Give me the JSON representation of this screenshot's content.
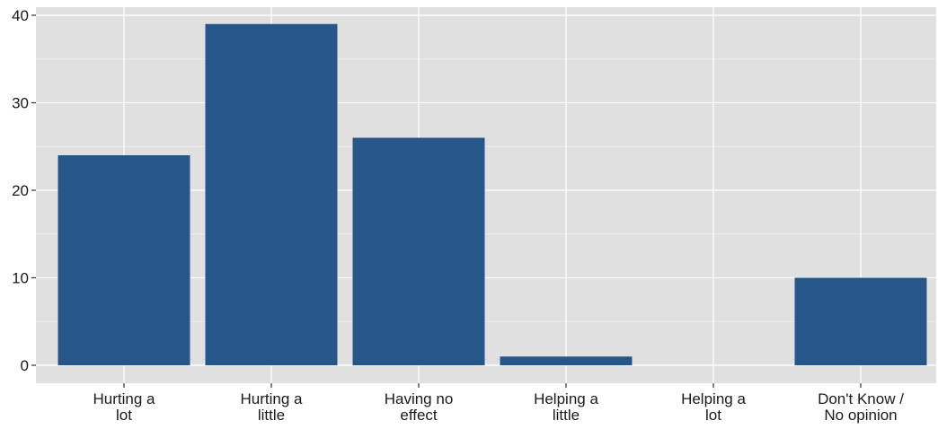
{
  "chart_data": {
    "type": "bar",
    "categories": [
      [
        "Hurting a",
        "lot"
      ],
      [
        "Hurting a",
        "little"
      ],
      [
        "Having no",
        "effect"
      ],
      [
        "Helping a",
        "little"
      ],
      [
        "Helping a",
        "lot"
      ],
      [
        "Don't Know /",
        "No opinion"
      ]
    ],
    "values": [
      24,
      39,
      26,
      1,
      0,
      10
    ],
    "title": "",
    "xlabel": "",
    "ylabel": "",
    "ylim": [
      0,
      40
    ],
    "yticks": [
      0,
      10,
      20,
      30,
      40
    ],
    "grid": true,
    "bar_color": "#27568A",
    "panel_background": "#E0E0E0",
    "grid_color": "#FFFFFF"
  }
}
